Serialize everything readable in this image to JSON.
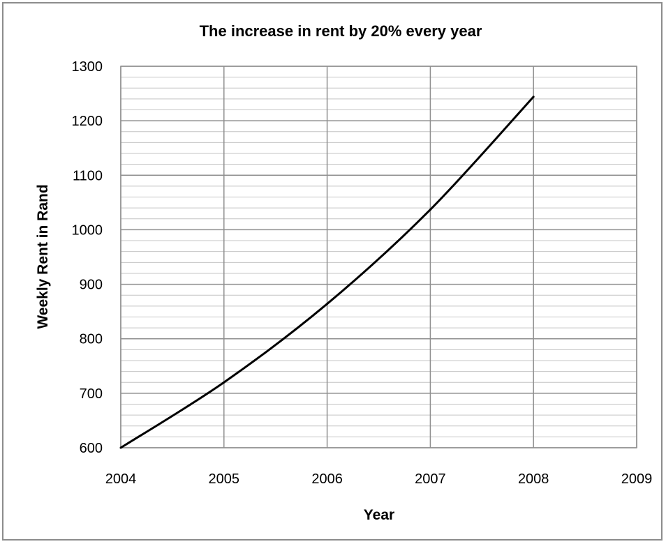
{
  "chart_data": {
    "type": "line",
    "title": "The increase in rent by 20% every year",
    "xlabel": "Year",
    "ylabel": "Weekly Rent in Rand",
    "x_ticks": [
      "2004",
      "2005",
      "2006",
      "2007",
      "2008",
      "2009"
    ],
    "y_ticks": [
      "600",
      "700",
      "800",
      "900",
      "1000",
      "1100",
      "1200",
      "1300"
    ],
    "xlim": [
      2004,
      2009
    ],
    "ylim": [
      600,
      1300
    ],
    "grid": true,
    "minor_grid_step": 20,
    "series": [
      {
        "color": "#000000",
        "smooth": true,
        "x": [
          2004,
          2005,
          2006,
          2007,
          2008
        ],
        "values": [
          600,
          720,
          864,
          1037,
          1244
        ]
      }
    ]
  }
}
